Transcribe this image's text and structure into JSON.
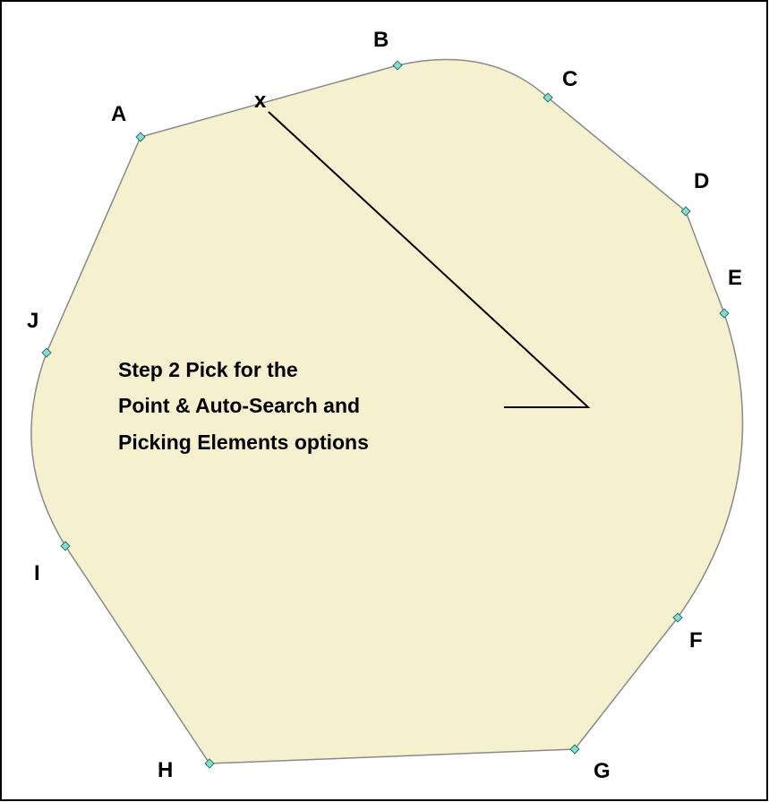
{
  "points": [
    {
      "label": "A"
    },
    {
      "label": "B"
    },
    {
      "label": "C"
    },
    {
      "label": "D"
    },
    {
      "label": "E"
    },
    {
      "label": "F"
    },
    {
      "label": "G"
    },
    {
      "label": "H"
    },
    {
      "label": "I"
    },
    {
      "label": "J"
    }
  ],
  "marker": "x",
  "caption": [
    "Step 2 Pick for the",
    "Point & Auto-Search and",
    "Picking Elements options"
  ]
}
